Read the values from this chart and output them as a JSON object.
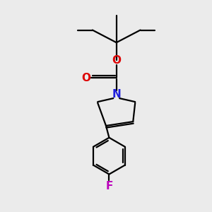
{
  "background_color": "#ebebeb",
  "bond_color": "#000000",
  "N_color": "#2020dd",
  "O_color": "#dd0000",
  "F_color": "#bb00bb",
  "line_width": 1.6,
  "font_size": 10.5,
  "figsize": [
    3.0,
    3.0
  ],
  "dpi": 100,
  "xlim": [
    0,
    10
  ],
  "ylim": [
    0,
    10
  ]
}
